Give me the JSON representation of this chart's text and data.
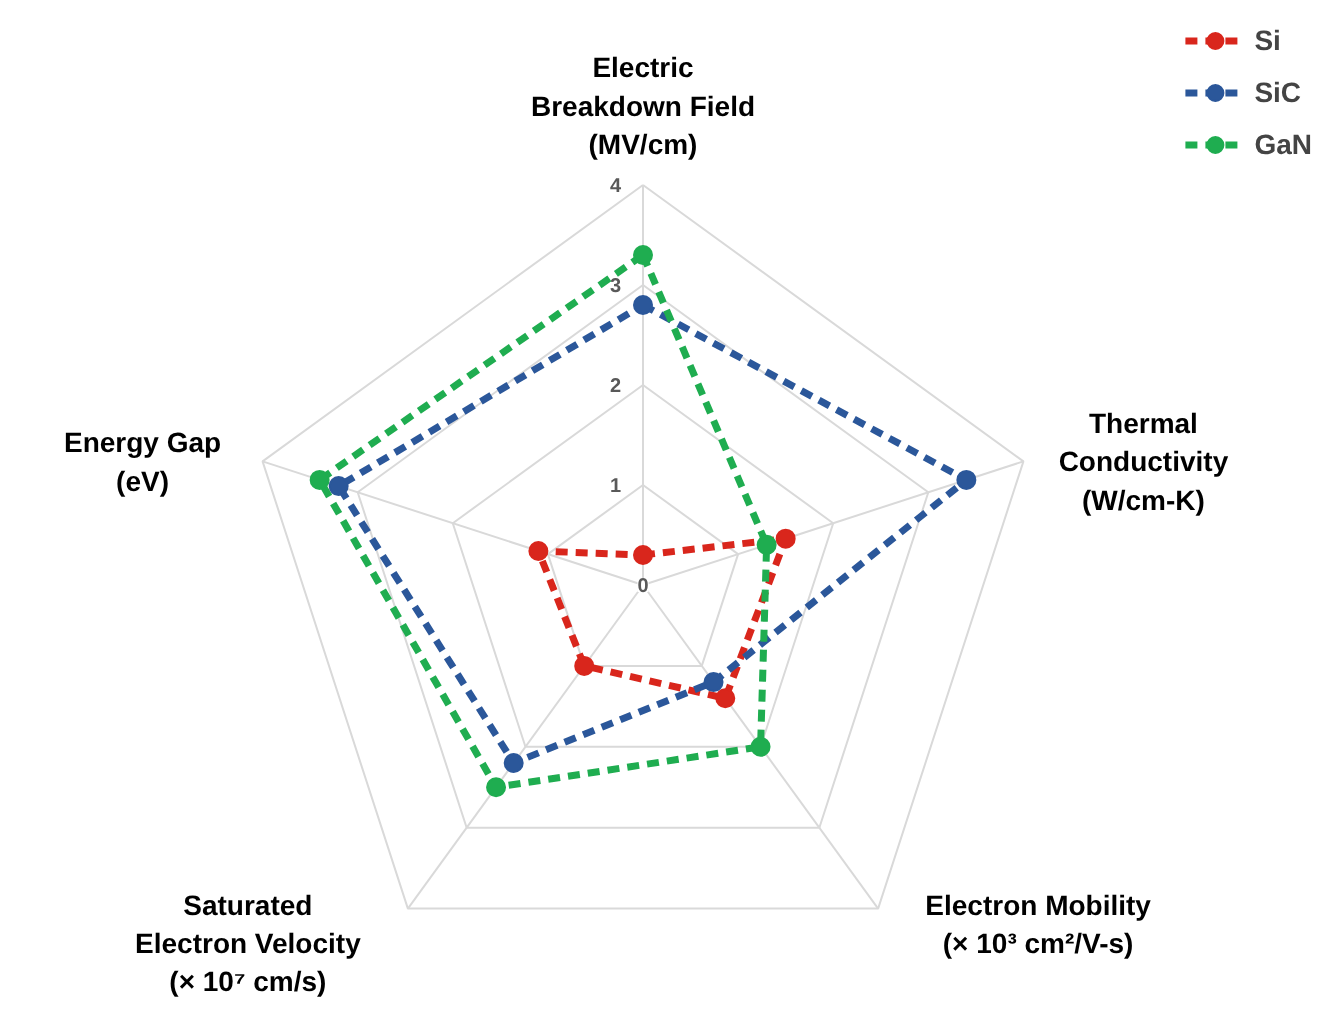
{
  "chart_data": {
    "type": "radar",
    "categories": [
      "Electric\nBreakdown Field\n(MV/cm)",
      "Thermal\nConductivity\n(W/cm-K)",
      "Electron Mobility\n(× 10³ cm²/V-s)",
      "Saturated\nElectron Velocity\n(× 10⁷ cm/s)",
      "Energy Gap\n(eV)"
    ],
    "series": [
      {
        "name": "Si",
        "color": "#d9261c",
        "values": [
          0.3,
          1.5,
          1.4,
          1.0,
          1.1
        ]
      },
      {
        "name": "SiC",
        "color": "#2b579a",
        "values": [
          2.8,
          3.4,
          1.2,
          2.2,
          3.2
        ]
      },
      {
        "name": "GaN",
        "color": "#1fad50",
        "values": [
          3.3,
          1.3,
          2.0,
          2.5,
          3.4
        ]
      }
    ],
    "ylim": [
      0,
      4
    ],
    "yticks": [
      0,
      1,
      2,
      3,
      4
    ],
    "grid": true,
    "legend": "top right",
    "marker": "circle",
    "line_style": "dashed"
  }
}
